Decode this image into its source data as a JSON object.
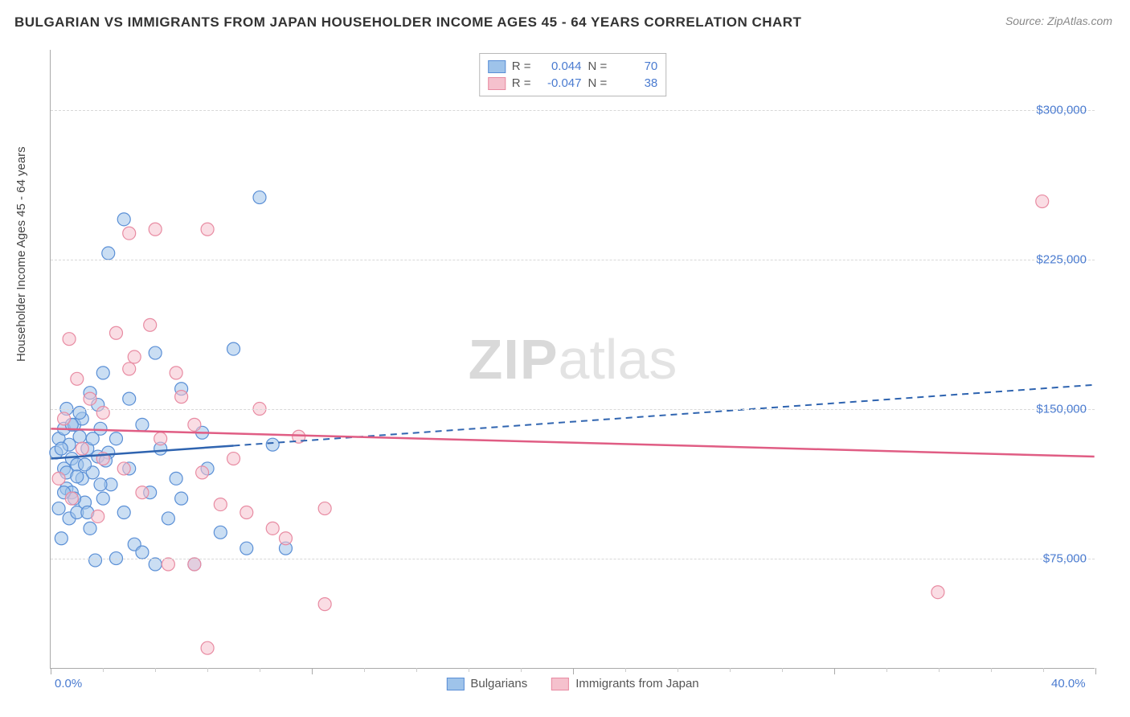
{
  "title": "BULGARIAN VS IMMIGRANTS FROM JAPAN HOUSEHOLDER INCOME AGES 45 - 64 YEARS CORRELATION CHART",
  "source": "Source: ZipAtlas.com",
  "ylabel": "Householder Income Ages 45 - 64 years",
  "watermark": {
    "left": "ZIP",
    "right": "atlas"
  },
  "chart": {
    "type": "scatter-correlation",
    "background_color": "#ffffff",
    "grid_color": "#d8d8d8",
    "axis_color": "#aaaaaa",
    "label_color": "#4a7bd0",
    "xlim": [
      0,
      40
    ],
    "ylim": [
      20000,
      330000
    ],
    "ytick_step": 75000,
    "ytick_start": 75000,
    "ytick_prefix": "$",
    "xtick_major_step": 10,
    "xtick_minor_step": 2,
    "xaxis_labels": [
      {
        "pos": 0,
        "text": "0.0%"
      },
      {
        "pos": 40,
        "text": "40.0%"
      }
    ],
    "point_radius": 8,
    "point_opacity": 0.55,
    "series": [
      {
        "name": "Bulgarians",
        "fill": "#9ec3ea",
        "stroke": "#5a8fd6",
        "line_color": "#2f64b0",
        "line_dash_after_x": 7,
        "r": 0.044,
        "n": 70,
        "regression": {
          "x1": 0,
          "y1": 125000,
          "x2": 40,
          "y2": 162000
        },
        "points": [
          [
            0.2,
            128000
          ],
          [
            0.3,
            100000
          ],
          [
            0.3,
            135000
          ],
          [
            0.4,
            85000
          ],
          [
            0.5,
            140000
          ],
          [
            0.5,
            120000
          ],
          [
            0.6,
            110000
          ],
          [
            0.6,
            150000
          ],
          [
            0.7,
            95000
          ],
          [
            0.7,
            132000
          ],
          [
            0.8,
            125000
          ],
          [
            0.8,
            108000
          ],
          [
            0.9,
            142000
          ],
          [
            1.0,
            122000
          ],
          [
            1.0,
            98000
          ],
          [
            1.1,
            136000
          ],
          [
            1.2,
            115000
          ],
          [
            1.2,
            145000
          ],
          [
            1.3,
            103000
          ],
          [
            1.4,
            130000
          ],
          [
            1.5,
            90000
          ],
          [
            1.5,
            158000
          ],
          [
            1.6,
            118000
          ],
          [
            1.7,
            74000
          ],
          [
            1.8,
            126000
          ],
          [
            1.9,
            140000
          ],
          [
            2.0,
            105000
          ],
          [
            2.0,
            168000
          ],
          [
            2.2,
            228000
          ],
          [
            2.3,
            112000
          ],
          [
            2.5,
            75000
          ],
          [
            2.5,
            135000
          ],
          [
            2.8,
            245000
          ],
          [
            2.8,
            98000
          ],
          [
            3.0,
            120000
          ],
          [
            3.0,
            155000
          ],
          [
            3.2,
            82000
          ],
          [
            3.5,
            78000
          ],
          [
            3.5,
            142000
          ],
          [
            3.8,
            108000
          ],
          [
            4.0,
            72000
          ],
          [
            4.0,
            178000
          ],
          [
            4.2,
            130000
          ],
          [
            4.5,
            95000
          ],
          [
            4.8,
            115000
          ],
          [
            5.0,
            160000
          ],
          [
            5.0,
            105000
          ],
          [
            5.5,
            72000
          ],
          [
            5.8,
            138000
          ],
          [
            6.0,
            120000
          ],
          [
            6.5,
            88000
          ],
          [
            7.0,
            180000
          ],
          [
            7.5,
            80000
          ],
          [
            8.0,
            256000
          ],
          [
            8.5,
            132000
          ],
          [
            9.0,
            80000
          ],
          [
            0.4,
            130000
          ],
          [
            0.6,
            118000
          ],
          [
            0.9,
            105000
          ],
          [
            1.1,
            148000
          ],
          [
            1.3,
            122000
          ],
          [
            1.6,
            135000
          ],
          [
            1.9,
            112000
          ],
          [
            2.2,
            128000
          ],
          [
            0.5,
            108000
          ],
          [
            0.8,
            142000
          ],
          [
            1.0,
            116000
          ],
          [
            1.4,
            98000
          ],
          [
            1.8,
            152000
          ],
          [
            2.1,
            124000
          ]
        ]
      },
      {
        "name": "Immigrants from Japan",
        "fill": "#f5c1cd",
        "stroke": "#e88ba2",
        "line_color": "#e05d84",
        "line_dash_after_x": null,
        "r": -0.047,
        "n": 38,
        "regression": {
          "x1": 0,
          "y1": 140000,
          "x2": 40,
          "y2": 126000
        },
        "points": [
          [
            0.3,
            115000
          ],
          [
            0.5,
            145000
          ],
          [
            0.7,
            185000
          ],
          [
            0.8,
            105000
          ],
          [
            1.0,
            165000
          ],
          [
            1.2,
            130000
          ],
          [
            1.5,
            155000
          ],
          [
            1.8,
            96000
          ],
          [
            2.0,
            148000
          ],
          [
            2.0,
            125000
          ],
          [
            2.5,
            188000
          ],
          [
            2.8,
            120000
          ],
          [
            3.0,
            170000
          ],
          [
            3.2,
            176000
          ],
          [
            3.5,
            108000
          ],
          [
            3.8,
            192000
          ],
          [
            4.0,
            240000
          ],
          [
            4.2,
            135000
          ],
          [
            4.5,
            72000
          ],
          [
            4.8,
            168000
          ],
          [
            5.0,
            156000
          ],
          [
            5.5,
            142000
          ],
          [
            5.5,
            72000
          ],
          [
            5.8,
            118000
          ],
          [
            6.0,
            240000
          ],
          [
            6.5,
            102000
          ],
          [
            7.0,
            125000
          ],
          [
            7.5,
            98000
          ],
          [
            8.0,
            150000
          ],
          [
            8.5,
            90000
          ],
          [
            9.0,
            85000
          ],
          [
            9.5,
            136000
          ],
          [
            10.5,
            52000
          ],
          [
            10.5,
            100000
          ],
          [
            6.0,
            30000
          ],
          [
            34.0,
            58000
          ],
          [
            38.0,
            254000
          ],
          [
            3.0,
            238000
          ]
        ]
      }
    ]
  },
  "stats_legend_labels": {
    "r_prefix": "R =",
    "n_prefix": "N ="
  }
}
